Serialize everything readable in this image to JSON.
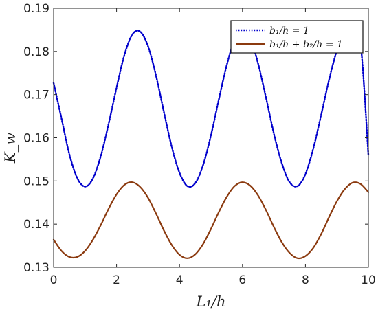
{
  "chart_data": {
    "type": "line",
    "title": "",
    "xlabel": "L₁/h",
    "ylabel": "K_w",
    "xlim": [
      0,
      10
    ],
    "ylim": [
      0.13,
      0.19
    ],
    "xticks": [
      "0",
      "2",
      "4",
      "6",
      "8",
      "10"
    ],
    "yticks": [
      "0.13",
      "0.14",
      "0.15",
      "0.16",
      "0.17",
      "0.18",
      "0.19"
    ],
    "grid": false,
    "legend": "top-right",
    "x": [
      0,
      0.25,
      0.5,
      0.75,
      1,
      1.25,
      1.5,
      1.75,
      2,
      2.25,
      2.5,
      2.75,
      3,
      3.25,
      3.5,
      3.75,
      4,
      4.25,
      4.5,
      4.75,
      5,
      5.25,
      5.5,
      5.75,
      6,
      6.25,
      6.5,
      6.75,
      7,
      7.25,
      7.5,
      7.75,
      8,
      8.25,
      8.5,
      8.75,
      9,
      9.25,
      9.5,
      9.75,
      10
    ],
    "series": [
      {
        "name": "b₁/h = 1",
        "style": "dotted",
        "color": "#0000cc",
        "values": [
          0.1727,
          0.1645,
          0.1562,
          0.1507,
          0.1487,
          0.1506,
          0.1558,
          0.1633,
          0.1716,
          0.1792,
          0.1839,
          0.1846,
          0.1812,
          0.1745,
          0.1661,
          0.158,
          0.1519,
          0.1488,
          0.1495,
          0.1537,
          0.1606,
          0.1689,
          0.1768,
          0.1827,
          0.1849,
          0.1829,
          0.1771,
          0.1692,
          0.1609,
          0.1541,
          0.1497,
          0.1488,
          0.1516,
          0.1575,
          0.1653,
          0.1734,
          0.1802,
          0.1843,
          0.185,
          0.1819,
          0.156
        ]
      },
      {
        "name": "b₁/h + b₂/h = 1",
        "style": "solid",
        "color": "#8b3a0f",
        "values": [
          0.1364,
          0.1338,
          0.1324,
          0.1324,
          0.1338,
          0.1364,
          0.1398,
          0.1436,
          0.1469,
          0.1491,
          0.1497,
          0.1486,
          0.1461,
          0.1425,
          0.1386,
          0.1352,
          0.1329,
          0.1321,
          0.133,
          0.1354,
          0.1389,
          0.1428,
          0.1463,
          0.1488,
          0.1497,
          0.1489,
          0.1466,
          0.1432,
          0.1393,
          0.1358,
          0.1333,
          0.1321,
          0.1326,
          0.1345,
          0.1377,
          0.1416,
          0.1453,
          0.1481,
          0.1496,
          0.1493,
          0.1474
        ]
      }
    ]
  }
}
